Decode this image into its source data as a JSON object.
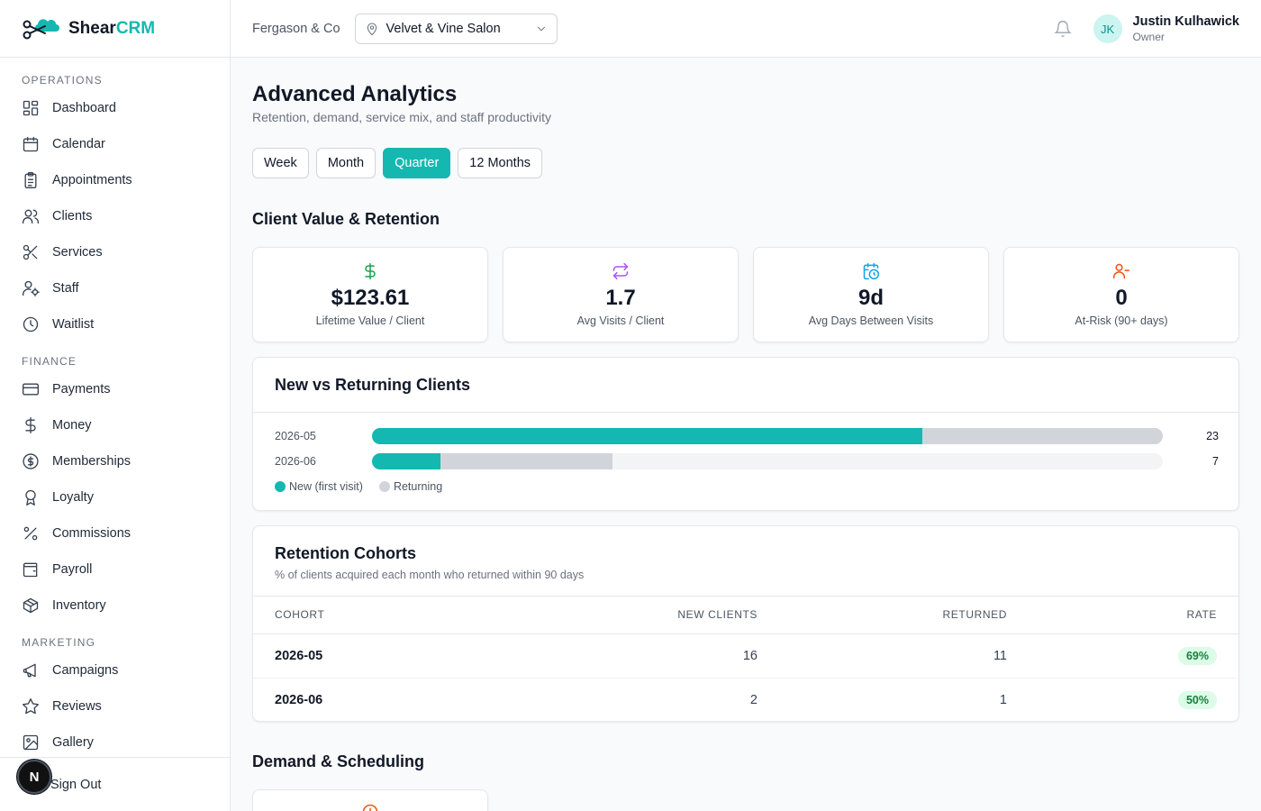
{
  "brand": {
    "name_main": "Shear",
    "name_accent": "CRM"
  },
  "sidebar": {
    "sections": [
      {
        "title": "OPERATIONS",
        "items": [
          {
            "label": "Dashboard",
            "icon": "dashboard-icon"
          },
          {
            "label": "Calendar",
            "icon": "calendar-icon"
          },
          {
            "label": "Appointments",
            "icon": "clipboard-icon"
          },
          {
            "label": "Clients",
            "icon": "users-icon"
          },
          {
            "label": "Services",
            "icon": "scissors-icon"
          },
          {
            "label": "Staff",
            "icon": "user-cog-icon"
          },
          {
            "label": "Waitlist",
            "icon": "clock-icon"
          }
        ]
      },
      {
        "title": "FINANCE",
        "items": [
          {
            "label": "Payments",
            "icon": "credit-card-icon"
          },
          {
            "label": "Money",
            "icon": "dollar-icon"
          },
          {
            "label": "Memberships",
            "icon": "badge-dollar-icon"
          },
          {
            "label": "Loyalty",
            "icon": "award-icon"
          },
          {
            "label": "Commissions",
            "icon": "percent-icon"
          },
          {
            "label": "Payroll",
            "icon": "wallet-icon"
          },
          {
            "label": "Inventory",
            "icon": "package-icon"
          }
        ]
      },
      {
        "title": "MARKETING",
        "items": [
          {
            "label": "Campaigns",
            "icon": "megaphone-icon"
          },
          {
            "label": "Reviews",
            "icon": "star-icon"
          },
          {
            "label": "Gallery",
            "icon": "image-icon"
          }
        ]
      }
    ],
    "sign_out": "Sign Out",
    "dev_badge": "N"
  },
  "topbar": {
    "org": "Fergason & Co",
    "location": "Velvet & Vine Salon",
    "user": {
      "initials": "JK",
      "name": "Justin Kulhawick",
      "role": "Owner"
    }
  },
  "page": {
    "title": "Advanced Analytics",
    "subtitle": "Retention, demand, service mix, and staff productivity",
    "periods": [
      "Week",
      "Month",
      "Quarter",
      "12 Months"
    ],
    "active_period": "Quarter"
  },
  "client_value": {
    "title": "Client Value & Retention",
    "kpis": [
      {
        "value": "$123.61",
        "label": "Lifetime Value / Client",
        "icon": "dollar-icon",
        "color": "#16a34a"
      },
      {
        "value": "1.7",
        "label": "Avg Visits / Client",
        "icon": "repeat-icon",
        "color": "#a855f7"
      },
      {
        "value": "9d",
        "label": "Avg Days Between Visits",
        "icon": "calendar-clock-icon",
        "color": "#0ea5e9"
      },
      {
        "value": "0",
        "label": "At-Risk (90+ days)",
        "icon": "user-minus-icon",
        "color": "#ea580c"
      }
    ]
  },
  "new_vs_returning": {
    "title": "New vs Returning Clients",
    "rows": [
      {
        "month": "2026-05",
        "new": 16,
        "returning": 7,
        "total": "23"
      },
      {
        "month": "2026-06",
        "new": 2,
        "returning": 5,
        "total": "7"
      }
    ],
    "max_total": 23,
    "legend": {
      "new": "New (first visit)",
      "returning": "Returning"
    },
    "colors": {
      "new": "#14b8b0",
      "returning": "#d1d5db"
    }
  },
  "cohorts": {
    "title": "Retention Cohorts",
    "subtitle": "% of clients acquired each month who returned within 90 days",
    "columns": [
      "COHORT",
      "NEW CLIENTS",
      "RETURNED",
      "RATE"
    ],
    "rows": [
      {
        "cohort": "2026-05",
        "new_clients": "16",
        "returned": "11",
        "rate": "69%"
      },
      {
        "cohort": "2026-06",
        "new_clients": "2",
        "returned": "1",
        "rate": "50%"
      }
    ]
  },
  "demand": {
    "title": "Demand & Scheduling"
  }
}
